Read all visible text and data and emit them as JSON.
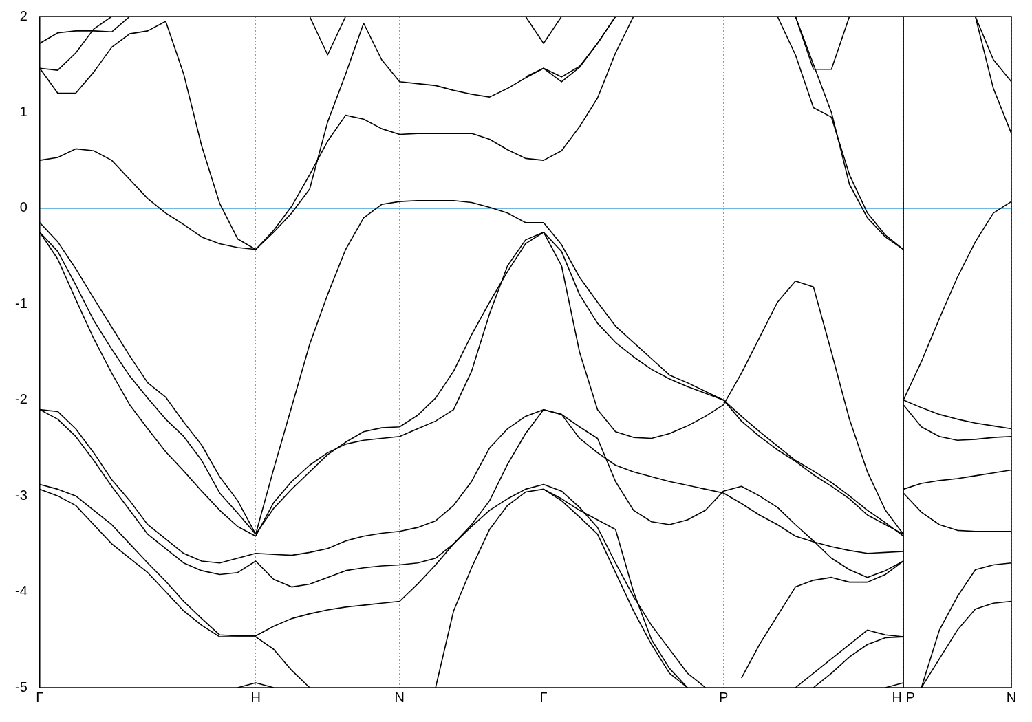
{
  "chart_data": {
    "type": "line",
    "categories": [
      "Γ",
      null,
      null,
      null,
      null,
      null,
      null,
      null,
      null,
      null,
      null,
      null,
      "H",
      null,
      null,
      null,
      null,
      null,
      null,
      null,
      "N",
      null,
      null,
      null,
      null,
      null,
      null,
      null,
      "Γ",
      null,
      null,
      null,
      null,
      null,
      null,
      null,
      null,
      null,
      "P",
      null,
      null,
      null,
      null,
      null,
      null,
      null,
      null,
      null,
      "H P",
      null,
      null,
      null,
      null,
      null,
      "N"
    ],
    "ylim": [
      -5,
      2
    ],
    "yticks": [
      -5,
      -4,
      -3,
      -2,
      -1,
      0,
      1,
      2
    ],
    "grid": "x",
    "ref_lines": [
      {
        "axis": "y",
        "value": 0,
        "color": "#3fa0d8",
        "line_style": "solid"
      },
      {
        "axis": "x",
        "value": "H P",
        "color": "#000000",
        "line_style": "solid"
      }
    ],
    "series": [
      {
        "color": "#000000",
        "values": [
          0.5,
          0.53,
          0.62,
          0.6,
          0.5,
          0.3,
          0.1,
          -0.05,
          -0.17,
          -0.3,
          -0.37,
          -0.41,
          -0.43,
          -0.23,
          0.02,
          0.35,
          0.7,
          0.97,
          0.93,
          0.83,
          0.77,
          0.78,
          0.78,
          0.78,
          0.78,
          0.72,
          0.61,
          0.52,
          0.5,
          0.6,
          0.85,
          1.15,
          1.62,
          2.0,
          null,
          null,
          null,
          null,
          null,
          null,
          null,
          null,
          null,
          null,
          null,
          null,
          null,
          null,
          null,
          null,
          null,
          null,
          null,
          null,
          null
        ]
      },
      {
        "color": "#000000",
        "values": [
          1.46,
          1.2,
          1.2,
          1.42,
          1.68,
          1.82,
          1.85,
          1.95,
          1.4,
          0.65,
          0.05,
          -0.32,
          -0.43,
          -0.25,
          -0.05,
          0.2,
          0.9,
          1.4,
          1.93,
          1.55,
          1.32,
          1.3,
          1.28,
          1.23,
          1.19,
          1.16,
          1.25,
          1.36,
          1.46,
          1.32,
          1.47,
          1.72,
          2.0,
          null,
          null,
          null,
          null,
          null,
          null,
          null,
          null,
          null,
          null,
          null,
          null,
          null,
          null,
          null,
          null,
          null,
          null,
          null,
          null,
          null,
          null
        ]
      },
      {
        "color": "#000000",
        "values": [
          null,
          null,
          null,
          null,
          null,
          null,
          null,
          null,
          null,
          null,
          null,
          null,
          null,
          null,
          null,
          2.0,
          1.6,
          2.0,
          null,
          null,
          null,
          null,
          null,
          null,
          null,
          null,
          null,
          null,
          null,
          null,
          null,
          null,
          null,
          null,
          null,
          null,
          null,
          null,
          null,
          null,
          null,
          null,
          null,
          null,
          null,
          null,
          null,
          null,
          null,
          null,
          null,
          null,
          null,
          null,
          null
        ]
      },
      {
        "color": "#000000",
        "values": [
          1.46,
          1.44,
          1.62,
          1.87,
          2.0,
          null,
          null,
          null,
          null,
          null,
          null,
          null,
          null,
          null,
          null,
          null,
          null,
          null,
          null,
          null,
          null,
          null,
          null,
          null,
          null,
          null,
          null,
          null,
          null,
          null,
          null,
          null,
          null,
          null,
          null,
          null,
          null,
          null,
          null,
          null,
          null,
          null,
          null,
          null,
          null,
          null,
          null,
          null,
          null,
          null,
          null,
          null,
          null,
          null,
          null
        ]
      },
      {
        "color": "#000000",
        "values": [
          1.72,
          1.83,
          1.85,
          1.85,
          1.84,
          2.0,
          null,
          null,
          null,
          null,
          null,
          null,
          null,
          null,
          null,
          null,
          null,
          null,
          null,
          null,
          null,
          null,
          null,
          null,
          null,
          null,
          null,
          null,
          null,
          null,
          null,
          null,
          null,
          null,
          null,
          null,
          null,
          null,
          null,
          null,
          null,
          null,
          null,
          null,
          null,
          null,
          null,
          null,
          null,
          null,
          null,
          null,
          null,
          null,
          null
        ]
      },
      {
        "color": "#000000",
        "values": [
          null,
          null,
          null,
          null,
          null,
          null,
          null,
          null,
          null,
          null,
          null,
          null,
          null,
          null,
          null,
          null,
          null,
          null,
          null,
          null,
          null,
          null,
          null,
          null,
          null,
          null,
          null,
          2.0,
          1.72,
          2.0,
          null,
          null,
          null,
          null,
          null,
          null,
          null,
          null,
          null,
          null,
          null,
          null,
          null,
          null,
          null,
          null,
          null,
          null,
          null,
          null,
          null,
          null,
          null,
          null,
          null
        ]
      },
      {
        "color": "#000000",
        "values": [
          null,
          null,
          null,
          null,
          null,
          null,
          null,
          null,
          null,
          null,
          null,
          null,
          null,
          null,
          null,
          null,
          null,
          null,
          null,
          null,
          null,
          null,
          null,
          null,
          null,
          null,
          null,
          1.37,
          1.46,
          1.37,
          1.48,
          1.72,
          2.0,
          null,
          null,
          null,
          null,
          null,
          null,
          null,
          null,
          null,
          null,
          null,
          null,
          null,
          null,
          null,
          null,
          null,
          null,
          null,
          null,
          null,
          null
        ]
      },
      {
        "color": "#000000",
        "values": [
          null,
          null,
          null,
          null,
          null,
          null,
          null,
          null,
          null,
          null,
          null,
          null,
          null,
          null,
          null,
          null,
          null,
          null,
          null,
          null,
          null,
          null,
          null,
          null,
          null,
          null,
          null,
          null,
          null,
          null,
          null,
          null,
          null,
          null,
          null,
          null,
          null,
          null,
          null,
          null,
          null,
          2.0,
          1.6,
          1.05,
          0.95,
          0.35,
          -0.05,
          -0.28,
          -0.43,
          null,
          null,
          null,
          null,
          null,
          null
        ]
      },
      {
        "color": "#000000",
        "values": [
          null,
          null,
          null,
          null,
          null,
          null,
          null,
          null,
          null,
          null,
          null,
          null,
          null,
          null,
          null,
          null,
          null,
          null,
          null,
          null,
          null,
          null,
          null,
          null,
          null,
          null,
          null,
          null,
          null,
          null,
          null,
          null,
          null,
          null,
          null,
          null,
          null,
          null,
          null,
          null,
          null,
          null,
          2.0,
          1.45,
          1.45,
          2.0,
          null,
          null,
          null,
          null,
          null,
          null,
          null,
          null,
          null
        ]
      },
      {
        "color": "#000000",
        "values": [
          null,
          null,
          null,
          null,
          null,
          null,
          null,
          null,
          null,
          null,
          null,
          null,
          null,
          null,
          null,
          null,
          null,
          null,
          null,
          null,
          null,
          null,
          null,
          null,
          null,
          null,
          null,
          null,
          null,
          null,
          null,
          null,
          null,
          null,
          null,
          null,
          null,
          null,
          null,
          null,
          null,
          null,
          2.0,
          1.5,
          1.0,
          0.25,
          -0.1,
          -0.3,
          -0.43,
          null,
          null,
          null,
          null,
          null,
          null
        ]
      },
      {
        "color": "#000000",
        "values": [
          null,
          null,
          null,
          null,
          null,
          null,
          null,
          null,
          null,
          null,
          null,
          null,
          null,
          null,
          null,
          null,
          null,
          null,
          null,
          null,
          null,
          null,
          null,
          null,
          null,
          null,
          null,
          null,
          null,
          null,
          null,
          null,
          null,
          null,
          null,
          null,
          null,
          null,
          null,
          null,
          null,
          null,
          null,
          null,
          null,
          null,
          null,
          null,
          null,
          null,
          null,
          null,
          2.0,
          1.55,
          1.32
        ]
      },
      {
        "color": "#000000",
        "values": [
          null,
          null,
          null,
          null,
          null,
          null,
          null,
          null,
          null,
          null,
          null,
          null,
          null,
          null,
          null,
          null,
          null,
          null,
          null,
          null,
          null,
          null,
          null,
          null,
          null,
          null,
          null,
          null,
          null,
          null,
          null,
          null,
          null,
          null,
          null,
          null,
          null,
          null,
          null,
          null,
          null,
          null,
          null,
          null,
          null,
          null,
          null,
          null,
          null,
          null,
          null,
          null,
          2.0,
          1.25,
          0.78
        ]
      },
      {
        "color": "#000000",
        "values": [
          -0.15,
          -0.35,
          -0.63,
          -0.94,
          -1.24,
          -1.54,
          -1.82,
          -1.97,
          -2.23,
          -2.47,
          -2.8,
          -3.05,
          -3.4,
          null,
          null,
          null,
          null,
          null,
          null,
          null,
          null,
          null,
          null,
          null,
          null,
          null,
          null,
          null,
          null,
          null,
          null,
          null,
          null,
          null,
          null,
          null,
          null,
          null,
          null,
          null,
          null,
          null,
          null,
          null,
          null,
          null,
          null,
          null,
          null,
          null,
          null,
          null,
          null,
          null,
          null
        ]
      },
      {
        "color": "#000000",
        "values": [
          -0.25,
          -0.45,
          -0.8,
          -1.17,
          -1.47,
          -1.75,
          -1.98,
          -2.2,
          -2.38,
          -2.63,
          -2.97,
          -3.18,
          -3.4,
          null,
          null,
          null,
          null,
          null,
          null,
          null,
          null,
          null,
          null,
          null,
          null,
          null,
          null,
          null,
          null,
          null,
          null,
          null,
          null,
          null,
          null,
          null,
          null,
          null,
          null,
          null,
          null,
          null,
          null,
          null,
          null,
          null,
          null,
          null,
          null,
          null,
          null,
          null,
          null,
          null,
          null
        ]
      },
      {
        "color": "#000000",
        "values": [
          -0.25,
          -0.53,
          -0.95,
          -1.36,
          -1.72,
          -2.05,
          -2.3,
          -2.54,
          -2.74,
          -2.95,
          -3.15,
          -3.32,
          -3.42,
          null,
          null,
          null,
          null,
          null,
          null,
          null,
          null,
          null,
          null,
          null,
          null,
          null,
          null,
          null,
          null,
          null,
          null,
          null,
          null,
          null,
          null,
          null,
          null,
          null,
          null,
          null,
          null,
          null,
          null,
          null,
          null,
          null,
          null,
          null,
          null,
          null,
          null,
          null,
          null,
          null,
          null
        ]
      },
      {
        "color": "#000000",
        "values": [
          null,
          null,
          null,
          null,
          null,
          null,
          null,
          null,
          null,
          null,
          null,
          null,
          -3.4,
          -2.72,
          -2.07,
          -1.42,
          -0.9,
          -0.43,
          -0.1,
          0.04,
          0.07,
          0.08,
          0.08,
          0.08,
          0.06,
          0.01,
          -0.05,
          -0.15,
          -0.15,
          -0.38,
          -0.72,
          -0.98,
          -1.23,
          -1.4,
          -1.57,
          -1.74,
          -1.82,
          -1.91,
          -2.0,
          -2.17,
          -2.33,
          -2.48,
          -2.63,
          -2.74,
          -2.86,
          -3.0,
          -3.15,
          -3.28,
          -3.42,
          null,
          null,
          null,
          null,
          null,
          null
        ]
      },
      {
        "color": "#000000",
        "values": [
          null,
          null,
          null,
          null,
          null,
          null,
          null,
          null,
          null,
          null,
          null,
          null,
          -3.4,
          -3.13,
          -2.93,
          -2.75,
          -2.57,
          -2.44,
          -2.33,
          -2.29,
          -2.28,
          -2.16,
          -1.98,
          -1.7,
          -1.32,
          -0.98,
          -0.66,
          -0.37,
          -0.25,
          -0.45,
          -0.9,
          -1.2,
          -1.4,
          -1.55,
          -1.68,
          -1.78,
          -1.86,
          -1.93,
          -2.0,
          -2.22,
          -2.38,
          -2.52,
          -2.64,
          -2.78,
          -2.9,
          -3.03,
          -3.2,
          -3.3,
          -3.4,
          null,
          null,
          null,
          null,
          null,
          null
        ]
      },
      {
        "color": "#000000",
        "values": [
          null,
          null,
          null,
          null,
          null,
          null,
          null,
          null,
          null,
          null,
          null,
          null,
          -3.42,
          -3.07,
          -2.85,
          -2.68,
          -2.55,
          -2.46,
          -2.42,
          -2.4,
          -2.38,
          -2.3,
          -2.22,
          -2.1,
          -1.7,
          -1.1,
          -0.6,
          -0.33,
          -0.25,
          -0.6,
          -1.5,
          -2.1,
          -2.33,
          -2.39,
          -2.4,
          -2.35,
          -2.27,
          -2.17,
          -2.05,
          -1.72,
          -1.35,
          -0.98,
          -0.76,
          -0.82,
          -1.5,
          -2.2,
          -2.75,
          -3.15,
          -3.4,
          null,
          null,
          null,
          null,
          null,
          null
        ]
      },
      {
        "color": "#000000",
        "values": [
          -2.1,
          -2.12,
          -2.3,
          -2.55,
          -2.83,
          -3.05,
          -3.3,
          -3.45,
          -3.6,
          -3.68,
          -3.7,
          -3.65,
          -3.6,
          -3.61,
          -3.62,
          -3.59,
          -3.55,
          -3.47,
          -3.42,
          -3.39,
          -3.37,
          -3.33,
          -3.26,
          -3.1,
          -2.85,
          -2.5,
          -2.3,
          -2.17,
          -2.1,
          -2.15,
          -2.4,
          -2.55,
          -2.68,
          -2.75,
          -2.8,
          -2.85,
          -2.89,
          -2.93,
          -2.97,
          -3.08,
          -3.2,
          -3.3,
          -3.42,
          -3.48,
          -3.53,
          -3.57,
          -3.6,
          -3.59,
          -3.58,
          null,
          null,
          null,
          null,
          null,
          null
        ]
      },
      {
        "color": "#000000",
        "values": [
          -2.1,
          -2.2,
          -2.38,
          -2.63,
          -2.9,
          -3.15,
          -3.4,
          -3.55,
          -3.7,
          -3.78,
          -3.82,
          -3.8,
          -3.68,
          -3.87,
          -3.95,
          -3.92,
          -3.85,
          -3.78,
          -3.75,
          -3.73,
          -3.72,
          -3.7,
          -3.65,
          -3.5,
          -3.3,
          -3.05,
          -2.67,
          -2.35,
          -2.1,
          -2.15,
          -2.28,
          -2.4,
          -2.85,
          -3.15,
          -3.27,
          -3.3,
          -3.25,
          -3.15,
          -2.95,
          -2.9,
          -3.0,
          -3.12,
          -3.3,
          -3.47,
          -3.65,
          -3.77,
          -3.85,
          -3.78,
          -3.68,
          null,
          null,
          null,
          null,
          null,
          null
        ]
      },
      {
        "color": "#000000",
        "values": [
          -2.88,
          -2.93,
          -3.0,
          -3.15,
          -3.3,
          -3.5,
          -3.7,
          -3.89,
          -4.1,
          -4.28,
          -4.45,
          -4.46,
          -4.46,
          -4.36,
          -4.28,
          -4.23,
          -4.19,
          -4.16,
          -4.14,
          -4.12,
          -4.1,
          -3.92,
          -3.72,
          -3.5,
          -3.32,
          -3.15,
          -3.03,
          -2.93,
          -2.88,
          -2.95,
          -3.12,
          -3.33,
          -3.7,
          -4.05,
          -4.35,
          -4.6,
          -4.85,
          -5.0,
          null,
          null,
          null,
          null,
          null,
          null,
          null,
          null,
          null,
          null,
          null,
          null,
          null,
          null,
          null,
          null,
          null
        ]
      },
      {
        "color": "#000000",
        "values": [
          -2.93,
          -3.0,
          -3.1,
          -3.3,
          -3.5,
          -3.65,
          -3.8,
          -4.0,
          -4.2,
          -4.35,
          -4.47,
          -4.47,
          -4.47,
          -4.6,
          -4.82,
          -5.0,
          null,
          null,
          null,
          null,
          null,
          null,
          null,
          null,
          null,
          null,
          null,
          null,
          null,
          null,
          null,
          null,
          null,
          null,
          null,
          null,
          null,
          null,
          null,
          null,
          null,
          null,
          null,
          null,
          null,
          null,
          null,
          null,
          null,
          null,
          null,
          null,
          null,
          null,
          null
        ]
      },
      {
        "color": "#000000",
        "values": [
          null,
          null,
          null,
          null,
          null,
          null,
          null,
          null,
          null,
          null,
          null,
          null,
          null,
          null,
          null,
          null,
          null,
          null,
          null,
          null,
          null,
          null,
          null,
          null,
          null,
          null,
          null,
          null,
          -2.93,
          -3.05,
          -3.22,
          -3.4,
          -3.8,
          -4.2,
          -4.55,
          -4.85,
          -5.0,
          null,
          null,
          null,
          null,
          null,
          null,
          null,
          null,
          null,
          null,
          null,
          null,
          null,
          null,
          null,
          null,
          null,
          null
        ]
      },
      {
        "color": "#000000",
        "values": [
          null,
          null,
          null,
          null,
          null,
          null,
          null,
          null,
          null,
          null,
          null,
          null,
          null,
          null,
          null,
          null,
          null,
          null,
          null,
          null,
          null,
          null,
          -5.0,
          -4.2,
          -3.75,
          -3.35,
          -3.1,
          -2.96,
          -2.93,
          -3.03,
          -3.15,
          -3.25,
          -3.35,
          -4.0,
          -4.5,
          -4.8,
          -5.0,
          null,
          null,
          null,
          null,
          null,
          null,
          null,
          null,
          null,
          null,
          null,
          null,
          null,
          null,
          null,
          null,
          null,
          null
        ]
      },
      {
        "color": "#000000",
        "values": [
          null,
          null,
          null,
          null,
          null,
          null,
          null,
          null,
          null,
          null,
          null,
          -5.0,
          -4.95,
          -5.0,
          null,
          null,
          null,
          null,
          null,
          null,
          null,
          null,
          null,
          null,
          null,
          null,
          null,
          null,
          null,
          null,
          null,
          null,
          null,
          null,
          null,
          null,
          null,
          null,
          null,
          null,
          null,
          null,
          null,
          null,
          null,
          null,
          null,
          null,
          null,
          null,
          null,
          null,
          null,
          null,
          null
        ]
      },
      {
        "color": "#000000",
        "values": [
          null,
          null,
          null,
          null,
          null,
          null,
          null,
          null,
          null,
          null,
          null,
          null,
          null,
          null,
          null,
          null,
          null,
          null,
          null,
          null,
          null,
          null,
          null,
          null,
          null,
          null,
          null,
          null,
          null,
          null,
          null,
          null,
          null,
          null,
          null,
          null,
          null,
          null,
          null,
          -4.9,
          -4.55,
          -4.25,
          -3.95,
          -3.88,
          -3.85,
          -3.9,
          -3.9,
          -3.82,
          -3.68,
          null,
          null,
          null,
          null,
          null,
          null
        ]
      },
      {
        "color": "#000000",
        "values": [
          null,
          null,
          null,
          null,
          null,
          null,
          null,
          null,
          null,
          null,
          null,
          null,
          null,
          null,
          null,
          null,
          null,
          null,
          null,
          null,
          null,
          null,
          null,
          null,
          null,
          null,
          null,
          null,
          null,
          null,
          null,
          null,
          null,
          null,
          null,
          null,
          null,
          null,
          null,
          null,
          null,
          null,
          -5.0,
          -4.85,
          -4.7,
          -4.55,
          -4.4,
          -4.45,
          -4.47,
          null,
          null,
          null,
          null,
          null,
          null
        ]
      },
      {
        "color": "#000000",
        "values": [
          null,
          null,
          null,
          null,
          null,
          null,
          null,
          null,
          null,
          null,
          null,
          null,
          null,
          null,
          null,
          null,
          null,
          null,
          null,
          null,
          null,
          null,
          null,
          null,
          null,
          null,
          null,
          null,
          null,
          null,
          null,
          null,
          null,
          null,
          null,
          null,
          null,
          null,
          null,
          null,
          null,
          null,
          null,
          -5.0,
          -4.85,
          -4.68,
          -4.55,
          -4.48,
          -4.47,
          null,
          null,
          null,
          null,
          null,
          null
        ]
      },
      {
        "color": "#000000",
        "values": [
          null,
          null,
          null,
          null,
          null,
          null,
          null,
          null,
          null,
          null,
          null,
          null,
          null,
          null,
          null,
          null,
          null,
          null,
          null,
          null,
          null,
          null,
          null,
          null,
          null,
          null,
          null,
          null,
          null,
          null,
          null,
          null,
          null,
          null,
          null,
          null,
          null,
          null,
          null,
          null,
          null,
          null,
          null,
          null,
          null,
          null,
          null,
          -5.0,
          -4.95,
          null,
          null,
          null,
          null,
          null,
          null
        ]
      },
      {
        "color": "#000000",
        "values": [
          null,
          null,
          null,
          null,
          null,
          null,
          null,
          null,
          null,
          null,
          null,
          null,
          null,
          null,
          null,
          null,
          null,
          null,
          null,
          null,
          null,
          null,
          null,
          null,
          null,
          null,
          null,
          null,
          null,
          null,
          null,
          null,
          null,
          null,
          null,
          null,
          null,
          null,
          null,
          null,
          null,
          null,
          null,
          null,
          null,
          null,
          null,
          null,
          -2.0,
          -1.6,
          -1.15,
          -0.72,
          -0.35,
          -0.05,
          0.07
        ]
      },
      {
        "color": "#000000",
        "values": [
          null,
          null,
          null,
          null,
          null,
          null,
          null,
          null,
          null,
          null,
          null,
          null,
          null,
          null,
          null,
          null,
          null,
          null,
          null,
          null,
          null,
          null,
          null,
          null,
          null,
          null,
          null,
          null,
          null,
          null,
          null,
          null,
          null,
          null,
          null,
          null,
          null,
          null,
          null,
          null,
          null,
          null,
          null,
          null,
          null,
          null,
          null,
          null,
          -2.0,
          -2.08,
          -2.15,
          -2.2,
          -2.24,
          -2.27,
          -2.3
        ]
      },
      {
        "color": "#000000",
        "values": [
          null,
          null,
          null,
          null,
          null,
          null,
          null,
          null,
          null,
          null,
          null,
          null,
          null,
          null,
          null,
          null,
          null,
          null,
          null,
          null,
          null,
          null,
          null,
          null,
          null,
          null,
          null,
          null,
          null,
          null,
          null,
          null,
          null,
          null,
          null,
          null,
          null,
          null,
          null,
          null,
          null,
          null,
          null,
          null,
          null,
          null,
          null,
          null,
          -2.05,
          -2.28,
          -2.38,
          -2.42,
          -2.41,
          -2.39,
          -2.38
        ]
      },
      {
        "color": "#000000",
        "values": [
          null,
          null,
          null,
          null,
          null,
          null,
          null,
          null,
          null,
          null,
          null,
          null,
          null,
          null,
          null,
          null,
          null,
          null,
          null,
          null,
          null,
          null,
          null,
          null,
          null,
          null,
          null,
          null,
          null,
          null,
          null,
          null,
          null,
          null,
          null,
          null,
          null,
          null,
          null,
          null,
          null,
          null,
          null,
          null,
          null,
          null,
          null,
          null,
          -2.93,
          -2.87,
          -2.84,
          -2.82,
          -2.79,
          -2.76,
          -2.73
        ]
      },
      {
        "color": "#000000",
        "values": [
          null,
          null,
          null,
          null,
          null,
          null,
          null,
          null,
          null,
          null,
          null,
          null,
          null,
          null,
          null,
          null,
          null,
          null,
          null,
          null,
          null,
          null,
          null,
          null,
          null,
          null,
          null,
          null,
          null,
          null,
          null,
          null,
          null,
          null,
          null,
          null,
          null,
          null,
          null,
          null,
          null,
          null,
          null,
          null,
          null,
          null,
          null,
          null,
          -2.97,
          -3.17,
          -3.3,
          -3.36,
          -3.37,
          -3.37,
          -3.37
        ]
      },
      {
        "color": "#000000",
        "values": [
          null,
          null,
          null,
          null,
          null,
          null,
          null,
          null,
          null,
          null,
          null,
          null,
          null,
          null,
          null,
          null,
          null,
          null,
          null,
          null,
          null,
          null,
          null,
          null,
          null,
          null,
          null,
          null,
          null,
          null,
          null,
          null,
          null,
          null,
          null,
          null,
          null,
          null,
          null,
          null,
          null,
          null,
          null,
          null,
          null,
          null,
          null,
          null,
          null,
          -5.0,
          -4.4,
          -4.05,
          -3.77,
          -3.72,
          -3.7
        ]
      },
      {
        "color": "#000000",
        "values": [
          null,
          null,
          null,
          null,
          null,
          null,
          null,
          null,
          null,
          null,
          null,
          null,
          null,
          null,
          null,
          null,
          null,
          null,
          null,
          null,
          null,
          null,
          null,
          null,
          null,
          null,
          null,
          null,
          null,
          null,
          null,
          null,
          null,
          null,
          null,
          null,
          null,
          null,
          null,
          null,
          null,
          null,
          null,
          null,
          null,
          null,
          null,
          null,
          null,
          -5.0,
          -4.7,
          -4.4,
          -4.18,
          -4.12,
          -4.1
        ]
      }
    ]
  }
}
